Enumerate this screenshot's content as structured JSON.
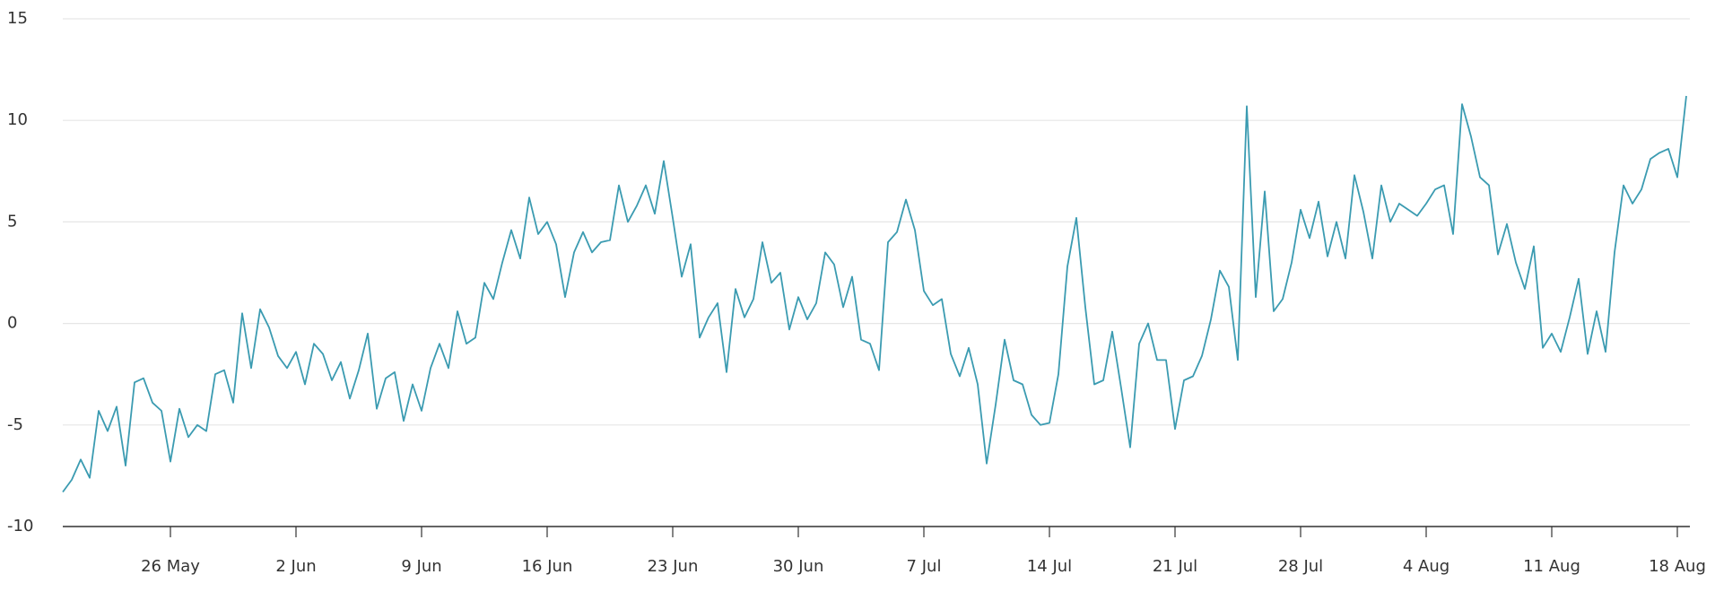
{
  "chart_data": {
    "type": "line",
    "categories": [
      null,
      null,
      null,
      null,
      null,
      null,
      null,
      null,
      null,
      null,
      null,
      null,
      "26 May",
      null,
      null,
      null,
      null,
      null,
      null,
      null,
      null,
      null,
      null,
      null,
      null,
      null,
      "2 Jun",
      null,
      null,
      null,
      null,
      null,
      null,
      null,
      null,
      null,
      null,
      null,
      null,
      null,
      "9 Jun",
      null,
      null,
      null,
      null,
      null,
      null,
      null,
      null,
      null,
      null,
      null,
      null,
      null,
      "16 Jun",
      null,
      null,
      null,
      null,
      null,
      null,
      null,
      null,
      null,
      null,
      null,
      null,
      null,
      "23 Jun",
      null,
      null,
      null,
      null,
      null,
      null,
      null,
      null,
      null,
      null,
      null,
      null,
      null,
      "30 Jun",
      null,
      null,
      null,
      null,
      null,
      null,
      null,
      null,
      null,
      null,
      null,
      null,
      null,
      "7 Jul",
      null,
      null,
      null,
      null,
      null,
      null,
      null,
      null,
      null,
      null,
      null,
      null,
      null,
      "14 Jul",
      null,
      null,
      null,
      null,
      null,
      null,
      null,
      null,
      null,
      null,
      null,
      null,
      null,
      "21 Jul",
      null,
      null,
      null,
      null,
      null,
      null,
      null,
      null,
      null,
      null,
      null,
      null,
      null,
      "28 Jul",
      null,
      null,
      null,
      null,
      null,
      null,
      null,
      null,
      null,
      null,
      null,
      null,
      null,
      "4 Aug",
      null,
      null,
      null,
      null,
      null,
      null,
      null,
      null,
      null,
      null,
      null,
      null,
      null,
      "11 Aug",
      null,
      null,
      null,
      null,
      null,
      null,
      null,
      null,
      null,
      null,
      null,
      null,
      null,
      "18 Aug",
      null
    ],
    "series": [
      {
        "color": "#3b9bb1",
        "values": [
          -8.3,
          -7.7,
          -6.7,
          -7.6,
          -4.3,
          -5.3,
          -4.1,
          -7.0,
          -2.9,
          -2.7,
          -3.9,
          -4.3,
          -6.8,
          -4.2,
          -5.6,
          -5.0,
          -5.3,
          -2.5,
          -2.3,
          -3.9,
          0.5,
          -2.2,
          0.7,
          -0.2,
          -1.6,
          -2.2,
          -1.4,
          -3.0,
          -1.0,
          -1.5,
          -2.8,
          -1.9,
          -3.7,
          -2.3,
          -0.5,
          -4.2,
          -2.7,
          -2.4,
          -4.8,
          -3.0,
          -4.3,
          -2.2,
          -1.0,
          -2.2,
          0.6,
          -1.0,
          -0.7,
          2.0,
          1.2,
          3.0,
          4.6,
          3.2,
          6.2,
          4.4,
          5.0,
          3.9,
          1.3,
          3.5,
          4.5,
          3.5,
          4.0,
          4.1,
          6.8,
          5.0,
          5.8,
          6.8,
          5.4,
          8.0,
          5.2,
          2.3,
          3.9,
          -0.7,
          0.3,
          1.0,
          -2.4,
          1.7,
          0.3,
          1.2,
          4.0,
          2.0,
          2.5,
          -0.3,
          1.3,
          0.2,
          1.0,
          3.5,
          2.9,
          0.8,
          2.3,
          -0.8,
          -1.0,
          -2.3,
          4.0,
          4.5,
          6.1,
          4.6,
          1.6,
          0.9,
          1.2,
          -1.5,
          -2.6,
          -1.2,
          -3.0,
          -6.9,
          -4.0,
          -0.8,
          -2.8,
          -3.0,
          -4.5,
          -5.0,
          -4.9,
          -2.5,
          2.8,
          5.2,
          0.8,
          -3.0,
          -2.8,
          -0.4,
          -3.2,
          -6.1,
          -1.0,
          0.0,
          -1.8,
          -1.8,
          -5.2,
          -2.8,
          -2.6,
          -1.6,
          0.2,
          2.6,
          1.8,
          -1.8,
          10.7,
          1.3,
          6.5,
          0.6,
          1.2,
          3.0,
          5.6,
          4.2,
          6.0,
          3.3,
          5.0,
          3.2,
          7.3,
          5.5,
          3.2,
          6.8,
          5.0,
          5.9,
          5.6,
          5.3,
          5.9,
          6.6,
          6.8,
          4.4,
          10.8,
          9.2,
          7.2,
          6.8,
          3.4,
          4.9,
          3.0,
          1.7,
          3.8,
          -1.2,
          -0.5,
          -1.4,
          0.3,
          2.2,
          -1.5,
          0.6,
          -1.4,
          3.5,
          6.8,
          5.9,
          6.6,
          8.1,
          8.4,
          8.6,
          7.2,
          11.2
        ]
      }
    ],
    "ylim": [
      -10,
      15
    ],
    "yticks": [
      -10,
      -5,
      0,
      5,
      10,
      15
    ],
    "grid": true
  }
}
